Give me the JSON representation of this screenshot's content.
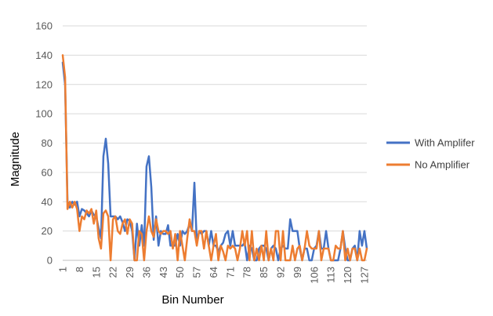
{
  "chart_data": {
    "type": "line",
    "xlabel": "Bin Number",
    "ylabel": "Magnitude",
    "ylim": [
      0,
      160
    ],
    "yticks": [
      0,
      20,
      40,
      60,
      80,
      100,
      120,
      140,
      160
    ],
    "xlim": [
      1,
      128
    ],
    "xticks": [
      1,
      8,
      15,
      22,
      29,
      36,
      43,
      50,
      57,
      64,
      71,
      78,
      85,
      92,
      99,
      106,
      113,
      120,
      127
    ],
    "grid": "horizontal",
    "legend_position": "right",
    "series": [
      {
        "name": "With Amplifer",
        "color": "#4472C4",
        "values": [
          135,
          120,
          40,
          36,
          40,
          38,
          40,
          30,
          35,
          34,
          32,
          30,
          34,
          31,
          30,
          22,
          15,
          71,
          83,
          66,
          30,
          30,
          30,
          28,
          30,
          26,
          20,
          28,
          27,
          20,
          0,
          25,
          10,
          24,
          10,
          64,
          71,
          50,
          14,
          30,
          10,
          20,
          18,
          18,
          24,
          10,
          10,
          10,
          18,
          10,
          20,
          18,
          20,
          25,
          20,
          53,
          12,
          20,
          18,
          20,
          20,
          10,
          20,
          10,
          10,
          6,
          10,
          12,
          18,
          20,
          10,
          20,
          10,
          10,
          10,
          10,
          12,
          0,
          10,
          8,
          0,
          0,
          8,
          10,
          10,
          8,
          0,
          8,
          10,
          8,
          0,
          8,
          10,
          8,
          8,
          28,
          20,
          20,
          20,
          8,
          0,
          8,
          8,
          0,
          0,
          8,
          10,
          20,
          8,
          8,
          20,
          8,
          0,
          0,
          0,
          0,
          8,
          20,
          8,
          0,
          0,
          8,
          10,
          0,
          20,
          10,
          20,
          8
        ]
      },
      {
        "name": "No Amplifier",
        "color": "#ED7D31",
        "values": [
          140,
          125,
          35,
          40,
          36,
          40,
          35,
          20,
          30,
          28,
          34,
          32,
          35,
          25,
          34,
          15,
          8,
          32,
          34,
          30,
          0,
          28,
          30,
          20,
          18,
          25,
          28,
          18,
          28,
          25,
          0,
          0,
          20,
          18,
          0,
          20,
          30,
          20,
          16,
          28,
          20,
          18,
          20,
          20,
          18,
          20,
          8,
          18,
          0,
          20,
          10,
          0,
          15,
          28,
          20,
          20,
          10,
          20,
          20,
          8,
          20,
          10,
          0,
          10,
          18,
          0,
          10,
          6,
          0,
          10,
          8,
          10,
          8,
          0,
          8,
          20,
          10,
          20,
          0,
          20,
          0,
          8,
          0,
          10,
          0,
          20,
          0,
          8,
          0,
          20,
          20,
          0,
          20,
          0,
          0,
          0,
          10,
          0,
          8,
          10,
          0,
          8,
          20,
          10,
          8,
          8,
          8,
          20,
          0,
          8,
          8,
          8,
          0,
          0,
          10,
          8,
          8,
          20,
          0,
          8,
          0,
          8,
          8,
          0,
          8,
          0,
          0,
          8
        ]
      }
    ]
  }
}
